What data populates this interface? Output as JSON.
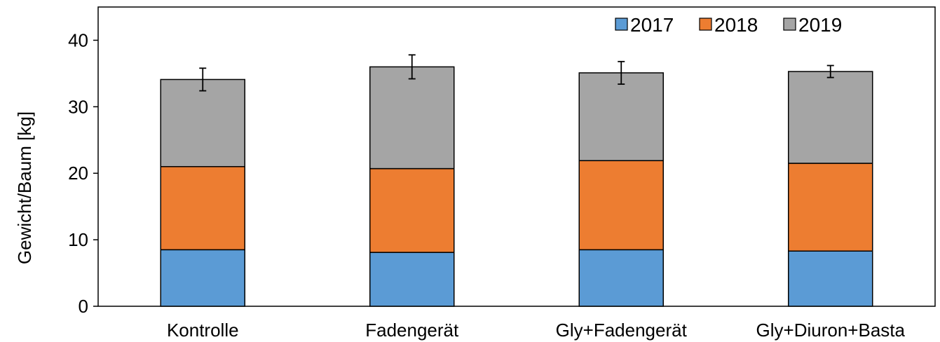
{
  "chart_data": {
    "type": "bar",
    "stacked": true,
    "title": "",
    "xlabel": "",
    "ylabel": "Gewicht/Baum [kg]",
    "ylim": [
      0,
      45
    ],
    "yticks": [
      0,
      10,
      20,
      30,
      40
    ],
    "grid": false,
    "legend_position": "top-right",
    "categories": [
      "Kontrolle",
      "Fadengerät",
      "Gly+Fadengerät",
      "Gly+Diuron+Basta"
    ],
    "series": [
      {
        "name": "2017",
        "color": "#5B9BD5",
        "values": [
          8.5,
          8.1,
          8.5,
          8.3
        ]
      },
      {
        "name": "2018",
        "color": "#ED7D31",
        "values": [
          12.5,
          12.6,
          13.4,
          13.2
        ]
      },
      {
        "name": "2019",
        "color": "#A5A5A5",
        "values": [
          13.1,
          15.3,
          13.2,
          13.8
        ]
      }
    ],
    "error_bars": [
      1.7,
      1.8,
      1.7,
      0.9
    ]
  }
}
